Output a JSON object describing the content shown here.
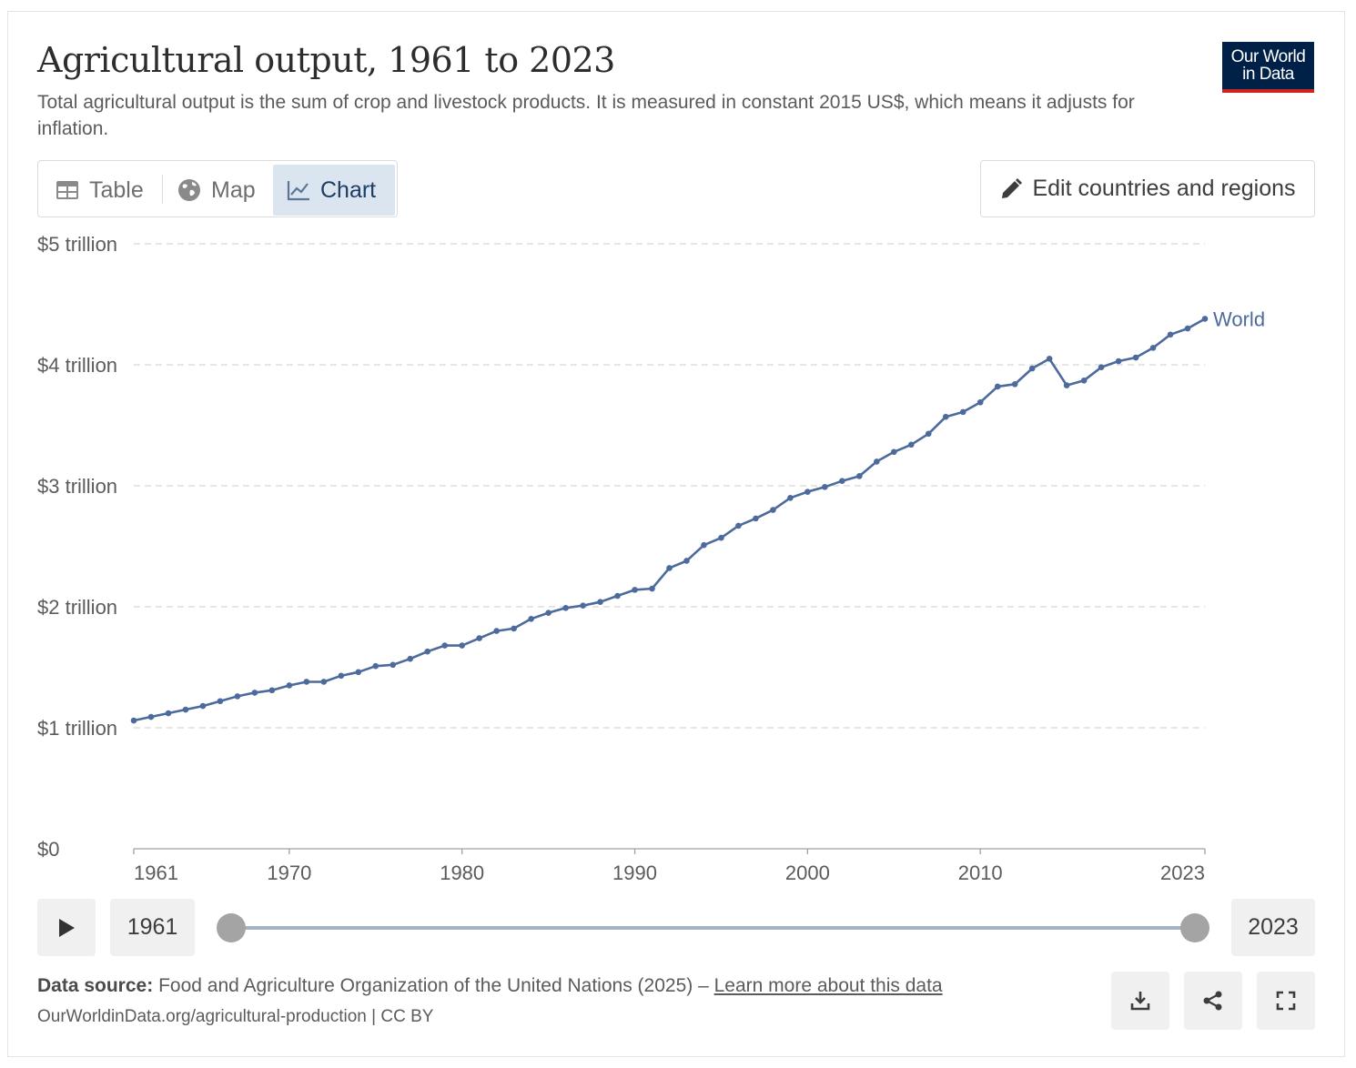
{
  "header": {
    "title": "Agricultural output, 1961 to 2023",
    "subtitle": "Total agricultural output is the sum of crop and livestock products. It is measured in constant 2015 US$, which means it adjusts for inflation.",
    "logo_line1": "Our World",
    "logo_line2": "in Data"
  },
  "tabs": [
    {
      "label": "Table",
      "icon": "table-icon"
    },
    {
      "label": "Map",
      "icon": "globe-icon"
    },
    {
      "label": "Chart",
      "icon": "line-chart-icon",
      "active": true
    }
  ],
  "edit_button": {
    "label": "Edit countries and regions",
    "icon": "pencil-icon"
  },
  "chart_data": {
    "type": "line",
    "title": "Agricultural output, 1961 to 2023",
    "xlabel": "",
    "ylabel": "",
    "xlim": [
      1961,
      2023
    ],
    "ylim": [
      0,
      5
    ],
    "y_ticks": [
      {
        "value": 0,
        "label": "$0"
      },
      {
        "value": 1,
        "label": "$1 trillion"
      },
      {
        "value": 2,
        "label": "$2 trillion"
      },
      {
        "value": 3,
        "label": "$3 trillion"
      },
      {
        "value": 4,
        "label": "$4 trillion"
      },
      {
        "value": 5,
        "label": "$5 trillion"
      }
    ],
    "x_ticks": [
      {
        "value": 1961,
        "label": "1961"
      },
      {
        "value": 1970,
        "label": "1970"
      },
      {
        "value": 1980,
        "label": "1980"
      },
      {
        "value": 1990,
        "label": "1990"
      },
      {
        "value": 2000,
        "label": "2000"
      },
      {
        "value": 2010,
        "label": "2010"
      },
      {
        "value": 2023,
        "label": "2023"
      }
    ],
    "grid": true,
    "legend": "inline-end-label",
    "series": [
      {
        "name": "World",
        "color": "#4c6a9c",
        "x": [
          1961,
          1962,
          1963,
          1964,
          1965,
          1966,
          1967,
          1968,
          1969,
          1970,
          1971,
          1972,
          1973,
          1974,
          1975,
          1976,
          1977,
          1978,
          1979,
          1980,
          1981,
          1982,
          1983,
          1984,
          1985,
          1986,
          1987,
          1988,
          1989,
          1990,
          1991,
          1992,
          1993,
          1994,
          1995,
          1996,
          1997,
          1998,
          1999,
          2000,
          2001,
          2002,
          2003,
          2004,
          2005,
          2006,
          2007,
          2008,
          2009,
          2010,
          2011,
          2012,
          2013,
          2014,
          2015,
          2016,
          2017,
          2018,
          2019,
          2020,
          2021,
          2022,
          2023
        ],
        "values": [
          1.06,
          1.09,
          1.12,
          1.15,
          1.18,
          1.22,
          1.26,
          1.29,
          1.31,
          1.35,
          1.38,
          1.38,
          1.43,
          1.46,
          1.51,
          1.52,
          1.57,
          1.63,
          1.68,
          1.68,
          1.74,
          1.8,
          1.82,
          1.9,
          1.95,
          1.99,
          2.01,
          2.04,
          2.09,
          2.14,
          2.15,
          2.32,
          2.38,
          2.51,
          2.57,
          2.67,
          2.73,
          2.8,
          2.9,
          2.95,
          2.99,
          3.04,
          3.08,
          3.2,
          3.28,
          3.34,
          3.43,
          3.57,
          3.61,
          3.69,
          3.82,
          3.84,
          3.97,
          4.05,
          3.83,
          3.87,
          3.98,
          4.03,
          4.06,
          4.14,
          4.25,
          4.3,
          4.38
        ]
      }
    ]
  },
  "timeline": {
    "start_label": "1961",
    "end_label": "2023",
    "start_fraction": 0,
    "end_fraction": 1
  },
  "footer": {
    "source_label": "Data source:",
    "source_text": "Food and Agriculture Organization of the United Nations (2025) –",
    "learn_more": "Learn more about this data",
    "url_text": "OurWorldinData.org/agricultural-production | CC BY"
  },
  "actions": [
    {
      "name": "download-button",
      "icon": "download-icon"
    },
    {
      "name": "share-button",
      "icon": "share-icon"
    },
    {
      "name": "fullscreen-button",
      "icon": "fullscreen-icon"
    }
  ]
}
